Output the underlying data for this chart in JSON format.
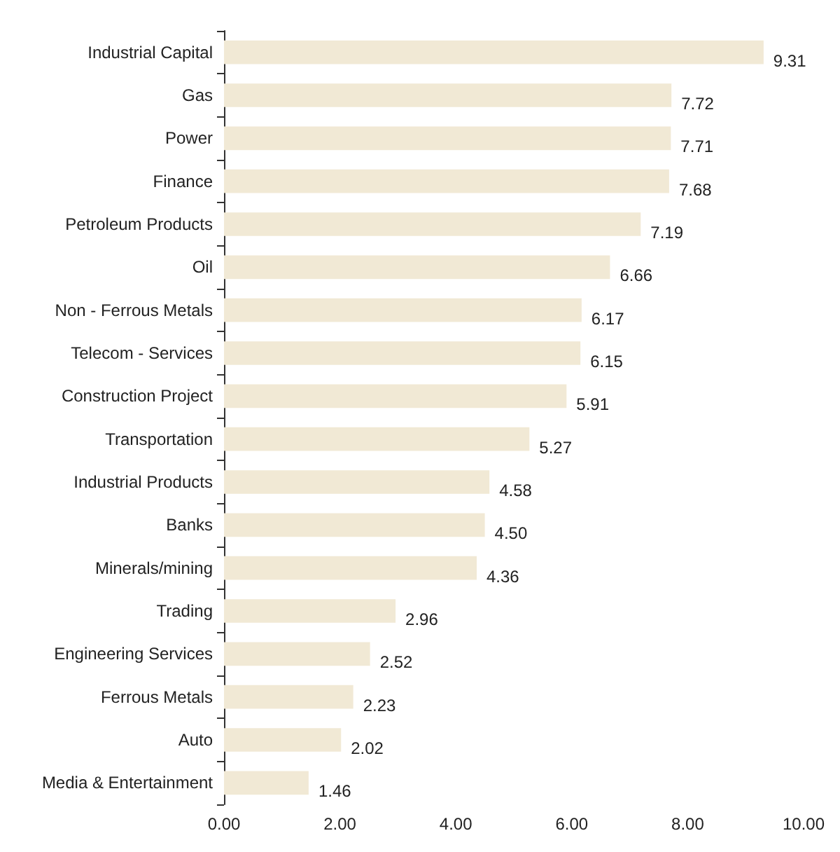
{
  "chart_data": {
    "type": "bar",
    "orientation": "horizontal",
    "categories": [
      "Industrial Capital",
      "Gas",
      "Power",
      "Finance",
      "Petroleum Products",
      "Oil",
      "Non - Ferrous Metals",
      "Telecom - Services",
      "Construction Project",
      "Transportation",
      "Industrial Products",
      "Banks",
      "Minerals/mining",
      "Trading",
      "Engineering Services",
      "Ferrous Metals",
      "Auto",
      "Media & Entertainment"
    ],
    "values": [
      9.31,
      7.72,
      7.71,
      7.68,
      7.19,
      6.66,
      6.17,
      6.15,
      5.91,
      5.27,
      4.58,
      4.5,
      4.36,
      2.96,
      2.52,
      2.23,
      2.02,
      1.46
    ],
    "value_labels": [
      "9.31",
      "7.72",
      "7.71",
      "7.68",
      "7.19",
      "6.66",
      "6.17",
      "6.15",
      "5.91",
      "5.27",
      "4.58",
      "4.50",
      "4.36",
      "2.96",
      "2.52",
      "2.23",
      "2.02",
      "1.46"
    ],
    "color": "#f1e9d5",
    "xlim": [
      0,
      10
    ],
    "xticks": [
      {
        "value": 0,
        "label": "0.00"
      },
      {
        "value": 2,
        "label": "2.00"
      },
      {
        "value": 4,
        "label": "4.00"
      },
      {
        "value": 6,
        "label": "6.00"
      },
      {
        "value": 8,
        "label": "8.00"
      },
      {
        "value": 10,
        "label": "10.00"
      }
    ],
    "grid": false
  }
}
